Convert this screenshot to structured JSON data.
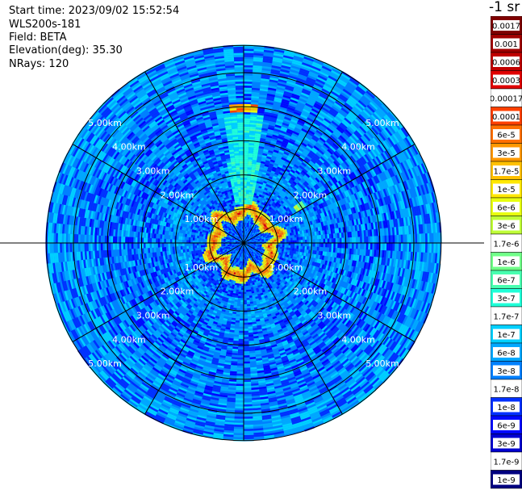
{
  "header": {
    "start_time": "Start time: 2023/09/02 15:52:54",
    "instrument": "WLS200s-181",
    "field": "Field: BETA",
    "elevation": "Elevation(deg): 35.30",
    "nrays": "NRays: 120"
  },
  "colorbar": {
    "title": "-1 sr",
    "levels": [
      {
        "label": "0.0017",
        "color": "#800000"
      },
      {
        "label": "0.001",
        "color": "#a00000"
      },
      {
        "label": "0.0006",
        "color": "#c00000"
      },
      {
        "label": "0.0003",
        "color": "#e00000"
      },
      {
        "label": "0.00017",
        "color": "#ffffff"
      },
      {
        "label": "0.0001",
        "color": "#ff4000"
      },
      {
        "label": "6e-5",
        "color": "#ff7000"
      },
      {
        "label": "3e-5",
        "color": "#ff9800"
      },
      {
        "label": "1.7e-5",
        "color": "#ffc000"
      },
      {
        "label": "1e-5",
        "color": "#ffe800"
      },
      {
        "label": "6e-6",
        "color": "#e8ff10"
      },
      {
        "label": "3e-6",
        "color": "#c0ff38"
      },
      {
        "label": "1.7e-6",
        "color": "#ffffff"
      },
      {
        "label": "1e-6",
        "color": "#70ff88"
      },
      {
        "label": "6e-7",
        "color": "#48ffb0"
      },
      {
        "label": "3e-7",
        "color": "#20ffd8"
      },
      {
        "label": "1.7e-7",
        "color": "#ffffff"
      },
      {
        "label": "1e-7",
        "color": "#00d0ff"
      },
      {
        "label": "6e-8",
        "color": "#00a8ff"
      },
      {
        "label": "3e-8",
        "color": "#0080ff"
      },
      {
        "label": "1.7e-8",
        "color": "#ffffff"
      },
      {
        "label": "1e-8",
        "color": "#0030ff"
      },
      {
        "label": "6e-9",
        "color": "#0008ff"
      },
      {
        "label": "3e-9",
        "color": "#0000d0"
      },
      {
        "label": "1.7e-9",
        "color": "#ffffff"
      },
      {
        "label": "1e-9",
        "color": "#000080"
      }
    ]
  },
  "chart_data": {
    "type": "heatmap",
    "projection": "polar",
    "field": "BETA",
    "elevation_deg": 35.3,
    "nrays": 120,
    "range_unit": "km",
    "max_range_km": 5.8,
    "range_rings_km": [
      1,
      2,
      3,
      4,
      5
    ],
    "range_ring_labels": [
      "1.00km",
      "2.00km",
      "3.00km",
      "4.00km",
      "5.00km"
    ],
    "spoke_angles_deg": [
      0,
      30,
      60,
      90,
      120,
      150,
      180,
      210,
      240,
      270,
      300,
      330
    ],
    "background_level": "3e-8",
    "near_field_level": "1e-8",
    "ring_feature": {
      "range_km_min": 0.7,
      "range_km_max": 1.1,
      "peak_level": "0.0003"
    },
    "sector_feature": {
      "azimuth_deg_min": -14,
      "azimuth_deg_max": 14,
      "range_km_min": 1.0,
      "range_km_max": 3.8,
      "level": "3e-7"
    },
    "far_patch": {
      "azimuth_deg_min": -5,
      "azimuth_deg_max": 5,
      "range_km": 3.95,
      "level": "1e-5"
    },
    "spot_feature": {
      "azimuth_deg": 57,
      "range_km": 1.95,
      "level": "6e-7"
    }
  }
}
